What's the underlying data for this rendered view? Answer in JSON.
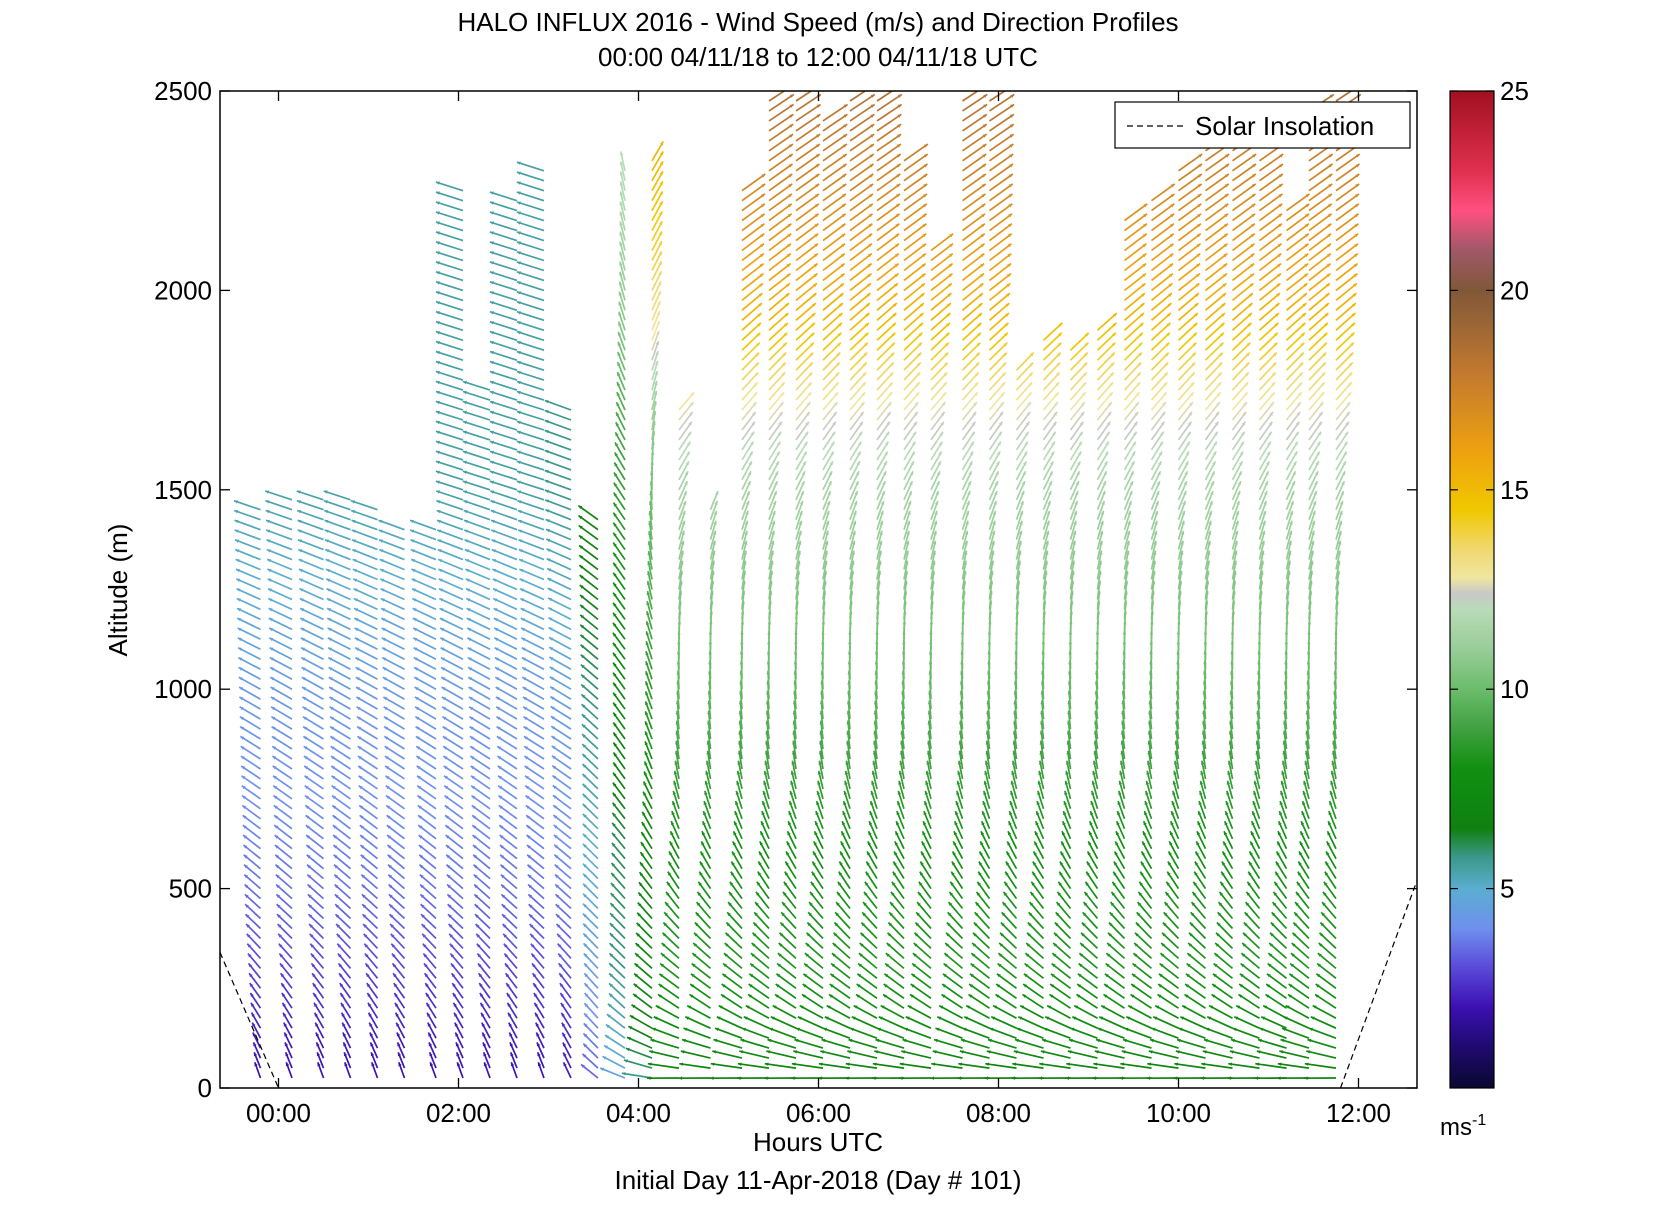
{
  "chart_data": {
    "type": "vector-field",
    "title": "HALO INFLUX 2016 - Wind Speed (m/s) and Direction Profiles",
    "subtitle": "00:00 04/11/18 to 12:00 04/11/18  UTC",
    "xlabel": "Hours UTC",
    "ylabel": "Altitude (m)",
    "footer": "Initial Day 11-Apr-2018 (Day # 101)",
    "xlim": [
      -0.65,
      12.65
    ],
    "ylim": [
      0,
      2500
    ],
    "x_ticks": [
      0,
      2,
      4,
      6,
      8,
      10,
      12
    ],
    "x_tick_labels": [
      "00:00",
      "02:00",
      "04:00",
      "06:00",
      "08:00",
      "10:00",
      "12:00"
    ],
    "y_ticks": [
      0,
      500,
      1000,
      1500,
      2000,
      2500
    ],
    "y_tick_labels": [
      "0",
      "500",
      "1000",
      "1500",
      "2000",
      "2500"
    ],
    "legend": {
      "label": "Solar Insolation",
      "placement": "top-right"
    },
    "solar_insolation": [
      {
        "x": [
          -0.65,
          0.0
        ],
        "y": [
          340,
          0
        ]
      },
      {
        "x": [
          11.8,
          12.65
        ],
        "y": [
          0,
          520
        ]
      }
    ],
    "colorbar": {
      "min": 0,
      "max": 25,
      "ticks": [
        5,
        10,
        15,
        20,
        25
      ],
      "tick_labels": [
        "5",
        "10",
        "15",
        "20",
        "25"
      ],
      "unit_label": "ms",
      "unit_exponent": "-1"
    },
    "colormap_stops": [
      [
        0,
        "#0a0830"
      ],
      [
        1,
        "#1e0a6e"
      ],
      [
        2,
        "#3a10b0"
      ],
      [
        3,
        "#5a48d8"
      ],
      [
        4,
        "#6f90ee"
      ],
      [
        5,
        "#5aaed0"
      ],
      [
        5.8,
        "#3a9888"
      ],
      [
        6.5,
        "#108010"
      ],
      [
        8,
        "#109010"
      ],
      [
        9,
        "#40a040"
      ],
      [
        10,
        "#6cbc6c"
      ],
      [
        11,
        "#98cc98"
      ],
      [
        12,
        "#b8dcb8"
      ],
      [
        12.4,
        "#c8c8c8"
      ],
      [
        12.8,
        "#f0e6a0"
      ],
      [
        13.5,
        "#f0d870"
      ],
      [
        14.5,
        "#f0c800"
      ],
      [
        16,
        "#eea010"
      ],
      [
        18,
        "#c07830"
      ],
      [
        20,
        "#805838"
      ],
      [
        21,
        "#a05868"
      ],
      [
        22,
        "#ff5080"
      ],
      [
        23,
        "#e03050"
      ],
      [
        25,
        "#a01020"
      ]
    ],
    "profile_times": [
      -0.2,
      0.15,
      0.5,
      0.8,
      1.1,
      1.4,
      1.75,
      2.05,
      2.35,
      2.65,
      2.95,
      3.25,
      3.55,
      3.85,
      4.15,
      4.45,
      4.8,
      5.15,
      5.45,
      5.75,
      6.05,
      6.35,
      6.65,
      6.95,
      7.25,
      7.6,
      7.9,
      8.2,
      8.5,
      8.8,
      9.1,
      9.4,
      9.7,
      10.0,
      10.3,
      10.6,
      10.9,
      11.2,
      11.45,
      11.75
    ],
    "profile_top_altitudes": [
      1470,
      1480,
      1480,
      1480,
      1450,
      1420,
      1410,
      2260,
      1760,
      2240,
      2320,
      1700,
      1440,
      2300,
      2330,
      1700,
      1450,
      2260,
      2480,
      2490,
      2440,
      2500,
      2500,
      2340,
      2100,
      2480,
      2490,
      1810,
      1890,
      1860,
      1900,
      2190,
      2240,
      2320,
      2360,
      2350,
      2330,
      2220,
      2470,
      2480
    ],
    "profile_speed_scale": [
      1.0,
      1.0,
      1.0,
      1.0,
      1.0,
      1.0,
      1.0,
      1.0,
      1.0,
      1.0,
      1.0,
      1.0,
      1.0,
      1.0,
      1.0,
      1.0,
      1.0,
      1.0,
      1.0,
      1.0,
      1.0,
      1.0,
      1.0,
      1.0,
      1.0,
      1.0,
      1.0,
      1.0,
      1.0,
      1.0,
      1.0,
      1.0,
      1.0,
      1.0,
      1.0,
      1.0,
      1.0,
      1.0,
      1.0,
      1.0
    ],
    "altitude_step_m": 25,
    "speed_profile_ms": [
      [
        0,
        2.0
      ],
      [
        100,
        2.2
      ],
      [
        300,
        3.0
      ],
      [
        500,
        3.6
      ],
      [
        700,
        4.0
      ],
      [
        900,
        4.2
      ],
      [
        1200,
        4.8
      ],
      [
        1500,
        5.5
      ]
    ],
    "speed_profile_late_ms": [
      [
        0,
        6.5
      ],
      [
        100,
        7.5
      ],
      [
        300,
        8.3
      ],
      [
        600,
        8.0
      ],
      [
        900,
        9.5
      ],
      [
        1200,
        10.5
      ],
      [
        1500,
        11.5
      ],
      [
        1700,
        12.8
      ],
      [
        1900,
        15.0
      ],
      [
        2200,
        17.0
      ],
      [
        2500,
        18.5
      ]
    ],
    "direction_note_deg": "vector bearing in screen degrees; profile shown as listed",
    "direction_profile_deg": [
      [
        0,
        350
      ],
      [
        100,
        345
      ],
      [
        400,
        330
      ],
      [
        800,
        320
      ],
      [
        1200,
        310
      ],
      [
        1500,
        300
      ]
    ],
    "direction_profile_late_deg": [
      [
        0,
        255
      ],
      [
        60,
        290
      ],
      [
        200,
        320
      ],
      [
        500,
        340
      ],
      [
        800,
        355
      ],
      [
        1100,
        360
      ],
      [
        1400,
        370
      ],
      [
        1700,
        385
      ],
      [
        2000,
        395
      ],
      [
        2500,
        400
      ]
    ]
  }
}
